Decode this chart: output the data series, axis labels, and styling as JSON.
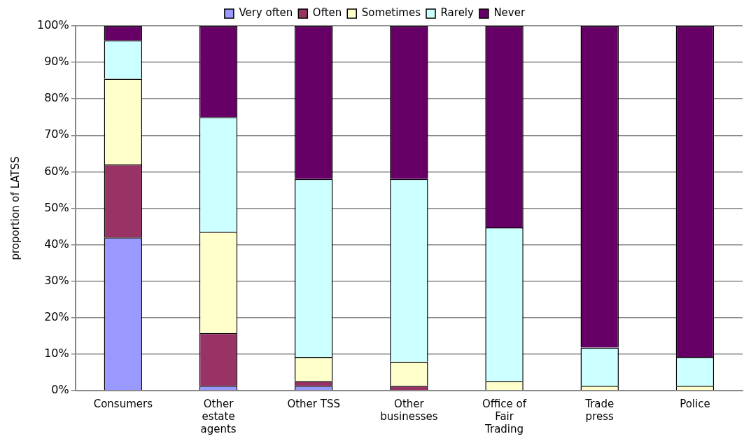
{
  "chart_data": {
    "type": "bar",
    "stacked": true,
    "ylabel": "proportion of LATSS",
    "categories": [
      "Consumers",
      [
        "Other",
        "estate",
        "agents"
      ],
      "Other TSS",
      [
        "Other",
        "businesses"
      ],
      [
        "Office of",
        "Fair",
        "Trading"
      ],
      [
        "Trade",
        "press"
      ],
      "Police"
    ],
    "series": [
      {
        "name": "Very often",
        "color": "#9999ff",
        "values": [
          42,
          1.3,
          1.3,
          0,
          0,
          0,
          0
        ]
      },
      {
        "name": "Often",
        "color": "#993366",
        "values": [
          20,
          14.5,
          1.3,
          1.3,
          0,
          0,
          0
        ]
      },
      {
        "name": "Sometimes",
        "color": "#ffffcc",
        "values": [
          23.5,
          27.7,
          6.6,
          6.6,
          2.6,
          1.3,
          1.3
        ]
      },
      {
        "name": "Rarely",
        "color": "#ccffff",
        "values": [
          10.5,
          31.5,
          48.8,
          50.1,
          42.1,
          10.5,
          7.9
        ]
      },
      {
        "name": "Never",
        "color": "#660066",
        "values": [
          4,
          25,
          42,
          42,
          55.3,
          88.2,
          90.8
        ]
      }
    ],
    "ylim": [
      0,
      100
    ],
    "yticks": [
      {
        "value": 0,
        "label": "0%"
      },
      {
        "value": 10,
        "label": "10%"
      },
      {
        "value": 20,
        "label": "20%"
      },
      {
        "value": 30,
        "label": "30%"
      },
      {
        "value": 40,
        "label": "40%"
      },
      {
        "value": 50,
        "label": "50%"
      },
      {
        "value": 60,
        "label": "60%"
      },
      {
        "value": 70,
        "label": "70%"
      },
      {
        "value": 80,
        "label": "80%"
      },
      {
        "value": 90,
        "label": "90%"
      },
      {
        "value": 100,
        "label": "100%"
      }
    ],
    "grid": "y",
    "legend": "top"
  }
}
